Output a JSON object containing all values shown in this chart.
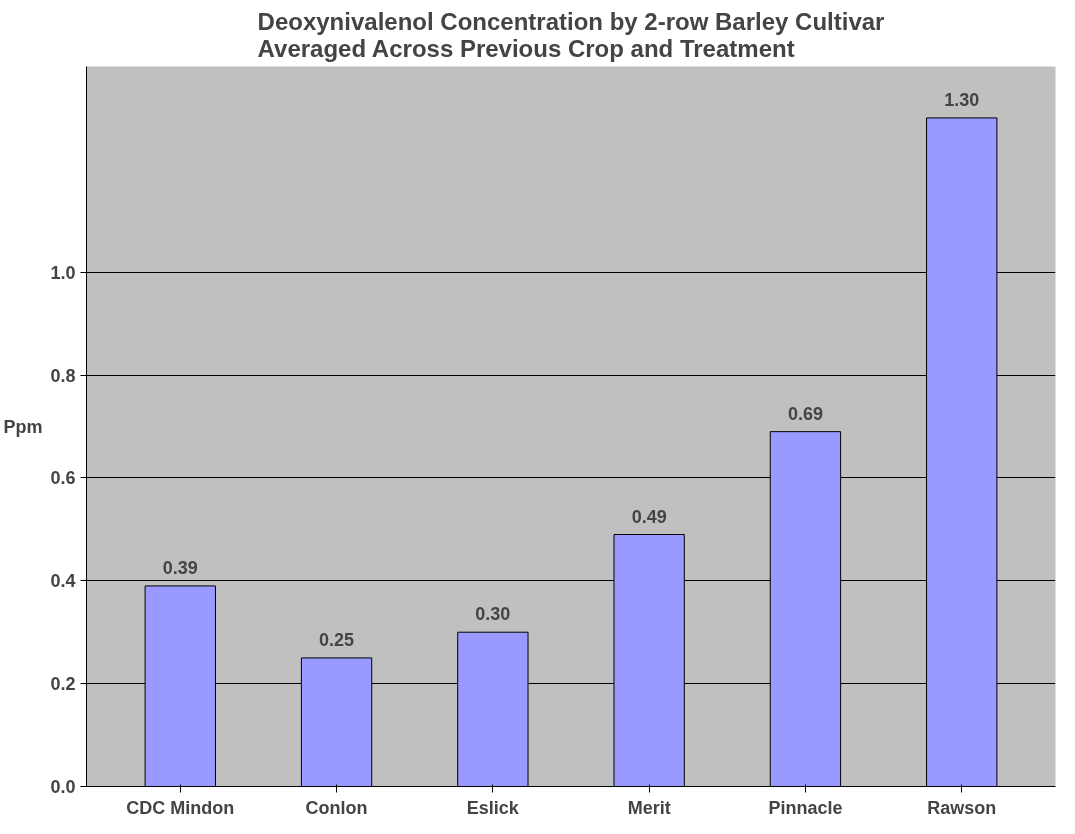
{
  "chart_data": {
    "type": "bar",
    "title": "Deoxynivalenol Concentration by 2-row Barley Cultivar\nAveraged Across Previous Crop and Treatment",
    "ylabel": "Ppm",
    "categories": [
      "CDC Mindon",
      "Conlon",
      "Eslick",
      "Merit",
      "Pinnacle",
      "Rawson"
    ],
    "values": [
      0.39,
      0.25,
      0.3,
      0.49,
      0.69,
      1.3
    ],
    "color": "#9999ff",
    "value_labels": [
      "0.39",
      "0.25",
      "0.30",
      "0.49",
      "0.69",
      "1.30"
    ],
    "ylim": [
      0,
      1.4
    ],
    "yticks": [
      {
        "value": 0,
        "label": "0.0"
      },
      0.2,
      0.4,
      0.6,
      0.8,
      {
        "value": 1,
        "label": "1.0"
      }
    ],
    "grid": "y"
  }
}
